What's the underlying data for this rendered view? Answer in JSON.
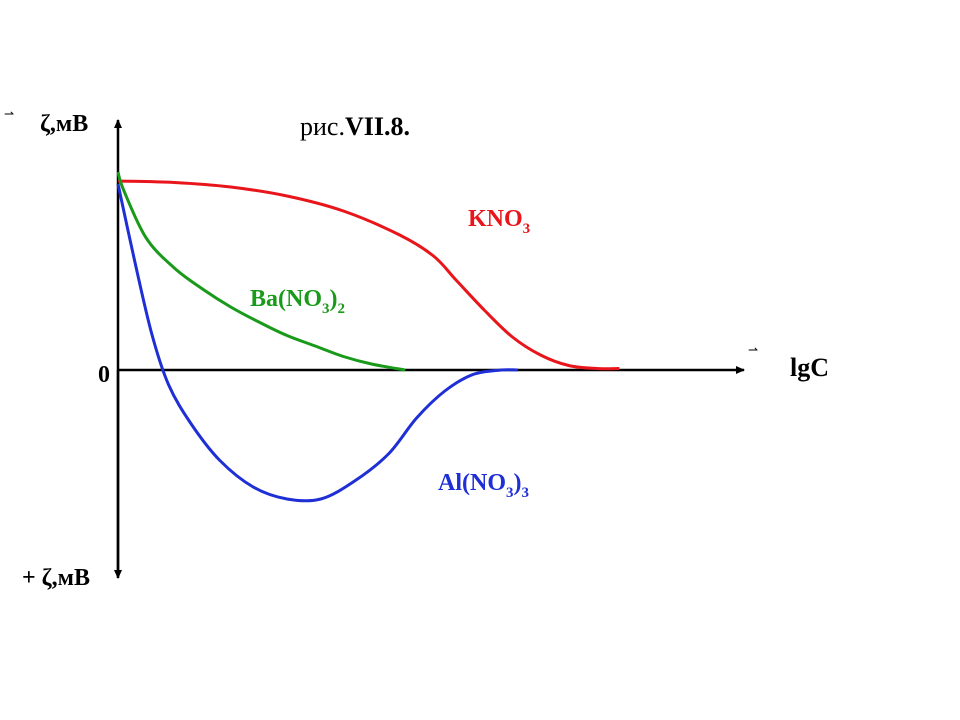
{
  "figure_label": "рис.",
  "figure_number": "VII.8.",
  "chart_data": {
    "type": "line",
    "title": "рис.VII.8.",
    "y_axis_top_label": "ζ,мВ",
    "y_axis_top_sign": "",
    "y_axis_bottom_label": "+ ζ,мВ",
    "x_axis_label": "lgC",
    "origin_label": "0",
    "xlim": [
      0,
      10
    ],
    "ylim": [
      -6,
      7
    ],
    "grid": false,
    "series": [
      {
        "name": "KNO",
        "subscript": "3",
        "suffix_sub": "",
        "color": "#e8151b",
        "points": [
          [
            0,
            6.3
          ],
          [
            1,
            6.25
          ],
          [
            2,
            6.1
          ],
          [
            3,
            5.8
          ],
          [
            4,
            5.3
          ],
          [
            5,
            4.5
          ],
          [
            5.6,
            3.8
          ],
          [
            6,
            3.0
          ],
          [
            6.5,
            2.0
          ],
          [
            7,
            1.1
          ],
          [
            7.5,
            0.5
          ],
          [
            8,
            0.15
          ],
          [
            8.5,
            0.05
          ],
          [
            8.9,
            0.05
          ]
        ]
      },
      {
        "name": "Ba(NO",
        "subscript": "3",
        "suffix": ")",
        "suffix_sub": "2",
        "color": "#1a9a1a",
        "points": [
          [
            0,
            6.6
          ],
          [
            0.1,
            6.0
          ],
          [
            0.5,
            4.4
          ],
          [
            1,
            3.4
          ],
          [
            1.5,
            2.7
          ],
          [
            2,
            2.1
          ],
          [
            2.5,
            1.6
          ],
          [
            3,
            1.15
          ],
          [
            3.5,
            0.8
          ],
          [
            4,
            0.45
          ],
          [
            4.5,
            0.2
          ],
          [
            5.1,
            0.0
          ]
        ]
      },
      {
        "name": "Al(NO",
        "subscript": "3",
        "suffix": ")",
        "suffix_sub": "3",
        "color": "#1f2fd6",
        "points": [
          [
            0,
            6.2
          ],
          [
            0.3,
            3.6
          ],
          [
            0.6,
            1.2
          ],
          [
            0.9,
            -0.5
          ],
          [
            1.3,
            -1.8
          ],
          [
            1.8,
            -3.0
          ],
          [
            2.4,
            -3.9
          ],
          [
            3,
            -4.3
          ],
          [
            3.6,
            -4.3
          ],
          [
            4.2,
            -3.7
          ],
          [
            4.8,
            -2.8
          ],
          [
            5.3,
            -1.6
          ],
          [
            5.8,
            -0.7
          ],
          [
            6.3,
            -0.15
          ],
          [
            6.8,
            0.0
          ],
          [
            7.1,
            0.0
          ]
        ]
      }
    ]
  }
}
